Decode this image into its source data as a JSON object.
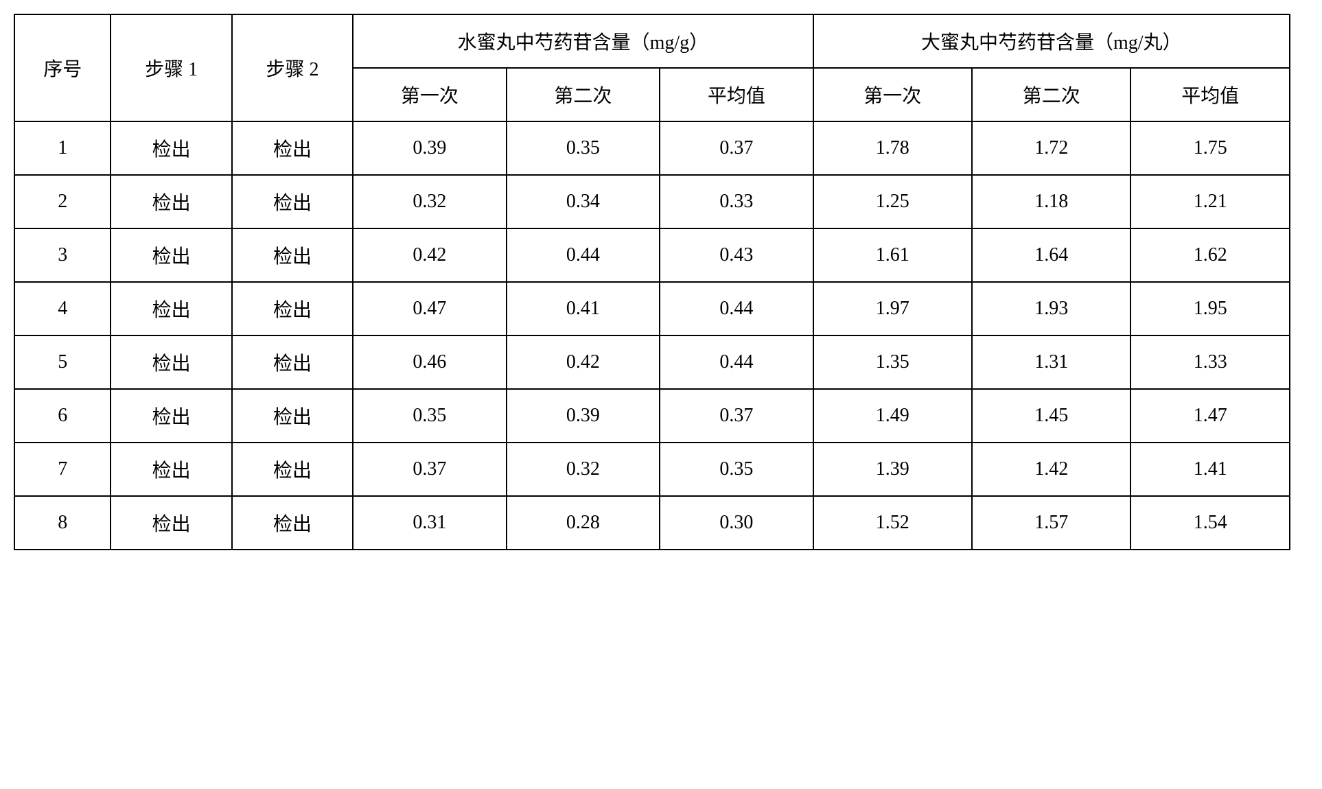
{
  "headers": {
    "col_seq": "序号",
    "col_step1": "步骤 1",
    "col_step2": "步骤 2",
    "group1_title": "水蜜丸中芍药苷含量（mg/g）",
    "group2_title": "大蜜丸中芍药苷含量（mg/丸）",
    "sub_first": "第一次",
    "sub_second": "第二次",
    "sub_avg": "平均值"
  },
  "rows": [
    {
      "seq": "1",
      "step1": "检出",
      "step2": "检出",
      "g1_first": "0.39",
      "g1_second": "0.35",
      "g1_avg": "0.37",
      "g2_first": "1.78",
      "g2_second": "1.72",
      "g2_avg": "1.75"
    },
    {
      "seq": "2",
      "step1": "检出",
      "step2": "检出",
      "g1_first": "0.32",
      "g1_second": "0.34",
      "g1_avg": "0.33",
      "g2_first": "1.25",
      "g2_second": "1.18",
      "g2_avg": "1.21"
    },
    {
      "seq": "3",
      "step1": "检出",
      "step2": "检出",
      "g1_first": "0.42",
      "g1_second": "0.44",
      "g1_avg": "0.43",
      "g2_first": "1.61",
      "g2_second": "1.64",
      "g2_avg": "1.62"
    },
    {
      "seq": "4",
      "step1": "检出",
      "step2": "检出",
      "g1_first": "0.47",
      "g1_second": "0.41",
      "g1_avg": "0.44",
      "g2_first": "1.97",
      "g2_second": "1.93",
      "g2_avg": "1.95"
    },
    {
      "seq": "5",
      "step1": "检出",
      "step2": "检出",
      "g1_first": "0.46",
      "g1_second": "0.42",
      "g1_avg": "0.44",
      "g2_first": "1.35",
      "g2_second": "1.31",
      "g2_avg": "1.33"
    },
    {
      "seq": "6",
      "step1": "检出",
      "step2": "检出",
      "g1_first": "0.35",
      "g1_second": "0.39",
      "g1_avg": "0.37",
      "g2_first": "1.49",
      "g2_second": "1.45",
      "g2_avg": "1.47"
    },
    {
      "seq": "7",
      "step1": "检出",
      "step2": "检出",
      "g1_first": "0.37",
      "g1_second": "0.32",
      "g1_avg": "0.35",
      "g2_first": "1.39",
      "g2_second": "1.42",
      "g2_avg": "1.41"
    },
    {
      "seq": "8",
      "step1": "检出",
      "step2": "检出",
      "g1_first": "0.31",
      "g1_second": "0.28",
      "g1_avg": "0.30",
      "g2_first": "1.52",
      "g2_second": "1.57",
      "g2_avg": "1.54"
    }
  ]
}
